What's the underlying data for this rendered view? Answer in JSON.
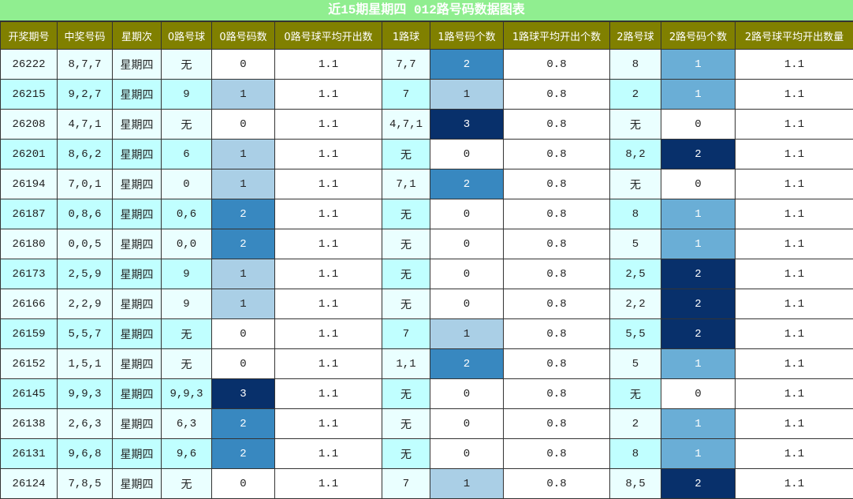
{
  "title": "近15期星期四 012路号码数据图表",
  "table": {
    "header": [
      "开奖期号",
      "中奖号码",
      "星期次",
      "0路号球",
      "0路号码数",
      "0路号球平均开出数",
      "1路球",
      "1路号码个数",
      "1路球平均开出个数",
      "2路号球",
      "2路号码个数",
      "2路号球平均开出数量"
    ],
    "count_columns": [
      4,
      7,
      10
    ],
    "rows": [
      [
        "26222",
        "8,7,7",
        "星期四",
        "无",
        "0",
        "1.1",
        "7,7",
        "2",
        "0.8",
        "8",
        "1",
        "1.1"
      ],
      [
        "26215",
        "9,2,7",
        "星期四",
        "9",
        "1",
        "1.1",
        "7",
        "1",
        "0.8",
        "2",
        "1",
        "1.1"
      ],
      [
        "26208",
        "4,7,1",
        "星期四",
        "无",
        "0",
        "1.1",
        "4,7,1",
        "3",
        "0.8",
        "无",
        "0",
        "1.1"
      ],
      [
        "26201",
        "8,6,2",
        "星期四",
        "6",
        "1",
        "1.1",
        "无",
        "0",
        "0.8",
        "8,2",
        "2",
        "1.1"
      ],
      [
        "26194",
        "7,0,1",
        "星期四",
        "0",
        "1",
        "1.1",
        "7,1",
        "2",
        "0.8",
        "无",
        "0",
        "1.1"
      ],
      [
        "26187",
        "0,8,6",
        "星期四",
        "0,6",
        "2",
        "1.1",
        "无",
        "0",
        "0.8",
        "8",
        "1",
        "1.1"
      ],
      [
        "26180",
        "0,0,5",
        "星期四",
        "0,0",
        "2",
        "1.1",
        "无",
        "0",
        "0.8",
        "5",
        "1",
        "1.1"
      ],
      [
        "26173",
        "2,5,9",
        "星期四",
        "9",
        "1",
        "1.1",
        "无",
        "0",
        "0.8",
        "2,5",
        "2",
        "1.1"
      ],
      [
        "26166",
        "2,2,9",
        "星期四",
        "9",
        "1",
        "1.1",
        "无",
        "0",
        "0.8",
        "2,2",
        "2",
        "1.1"
      ],
      [
        "26159",
        "5,5,7",
        "星期四",
        "无",
        "0",
        "1.1",
        "7",
        "1",
        "0.8",
        "5,5",
        "2",
        "1.1"
      ],
      [
        "26152",
        "1,5,1",
        "星期四",
        "无",
        "0",
        "1.1",
        "1,1",
        "2",
        "0.8",
        "5",
        "1",
        "1.1"
      ],
      [
        "26145",
        "9,9,3",
        "星期四",
        "9,9,3",
        "3",
        "1.1",
        "无",
        "0",
        "0.8",
        "无",
        "0",
        "1.1"
      ],
      [
        "26138",
        "2,6,3",
        "星期四",
        "6,3",
        "2",
        "1.1",
        "无",
        "0",
        "0.8",
        "2",
        "1",
        "1.1"
      ],
      [
        "26131",
        "9,6,8",
        "星期四",
        "9,6",
        "2",
        "1.1",
        "无",
        "0",
        "0.8",
        "8",
        "1",
        "1.1"
      ],
      [
        "26124",
        "7,8,5",
        "星期四",
        "无",
        "0",
        "1.1",
        "7",
        "1",
        "0.8",
        "8,5",
        "2",
        "1.1"
      ]
    ]
  }
}
